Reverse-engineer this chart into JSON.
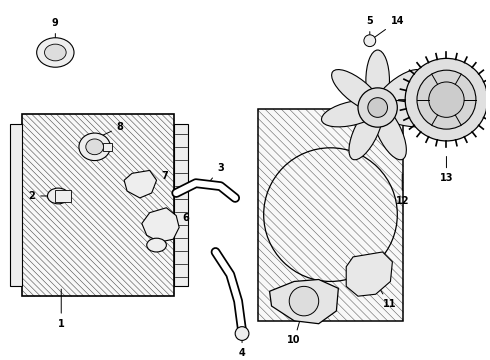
{
  "bg_color": "#ffffff",
  "line_color": "#000000",
  "parts_labels": [
    "1",
    "2",
    "3",
    "4",
    "5",
    "6",
    "7",
    "8",
    "9",
    "10",
    "11",
    "12",
    "13",
    "14"
  ]
}
